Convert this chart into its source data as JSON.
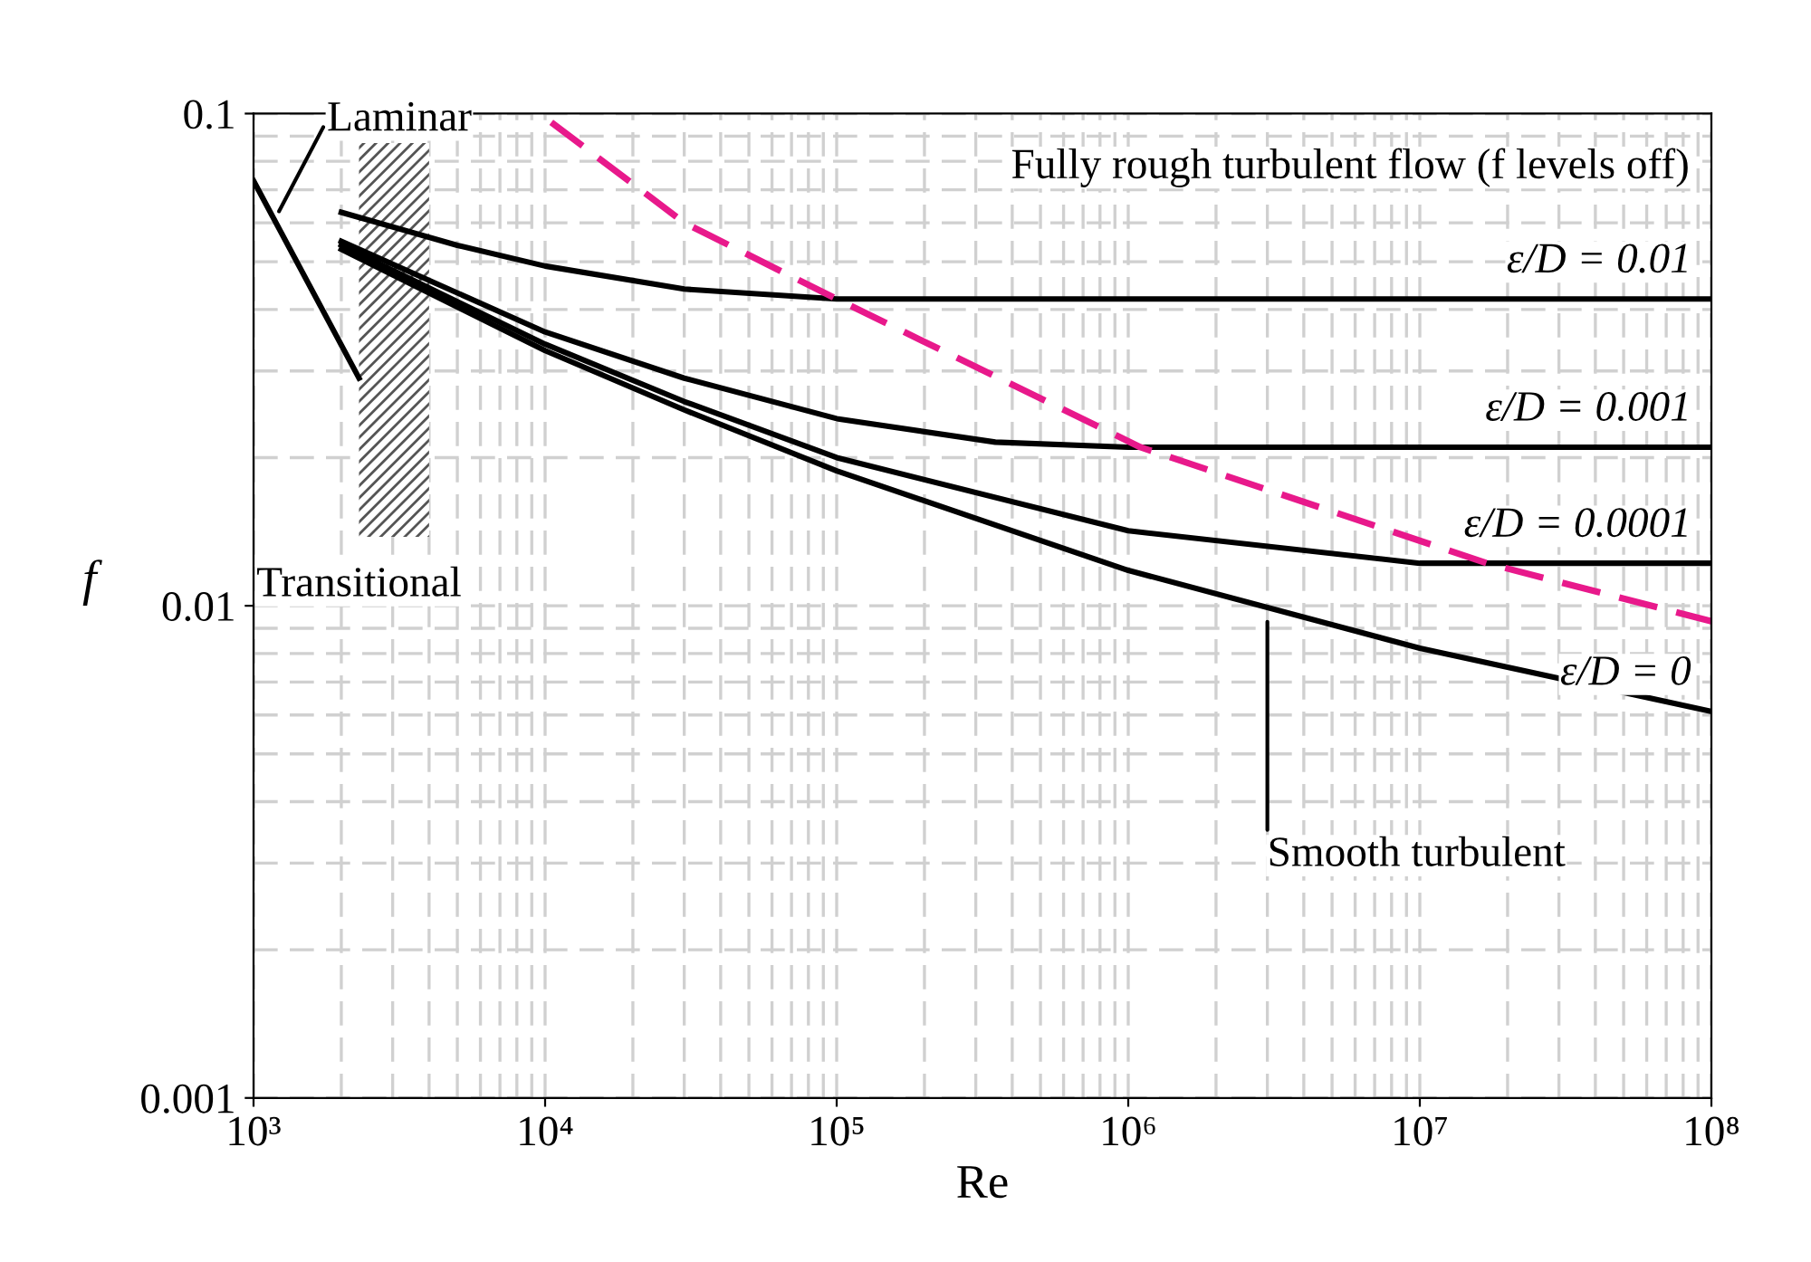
{
  "chart_data": {
    "type": "line",
    "xlabel": "Re",
    "ylabel": "f",
    "log": "xy",
    "xlim": [
      1000,
      100000000
    ],
    "ylim": [
      0.001,
      0.1
    ],
    "xticks": [
      {
        "value": 1000,
        "label": "10³"
      },
      {
        "value": 10000,
        "label": "10⁴"
      },
      {
        "value": 100000,
        "label": "10⁵"
      },
      {
        "value": 1000000,
        "label": "10⁶"
      },
      {
        "value": 10000000,
        "label": "10⁷"
      },
      {
        "value": 100000000,
        "label": "10⁸"
      }
    ],
    "yticks": [
      0.001,
      0.01,
      0.1
    ],
    "grid": true,
    "line_style": "solid",
    "marker": "none",
    "series": [
      {
        "color": "#000000",
        "x": [
          1000,
          2300
        ],
        "values": [
          0.073,
          0.029
        ]
      },
      {
        "name": "ε/D = 0.01",
        "color": "#000000",
        "x": [
          2000,
          5000,
          10000,
          30000,
          100000,
          1000000,
          100000000
        ],
        "values": [
          0.063,
          0.054,
          0.049,
          0.044,
          0.042,
          0.042,
          0.042
        ]
      },
      {
        "name": "ε/D = 0.001",
        "color": "#000000",
        "x": [
          2000,
          10000,
          30000,
          100000,
          350000,
          1000000,
          100000000
        ],
        "values": [
          0.055,
          0.036,
          0.029,
          0.024,
          0.0215,
          0.021,
          0.021
        ]
      },
      {
        "name": "ε/D = 0.0001",
        "color": "#000000",
        "x": [
          2000,
          10000,
          30000,
          100000,
          1000000,
          10000000,
          100000000
        ],
        "values": [
          0.054,
          0.034,
          0.026,
          0.02,
          0.0142,
          0.0122,
          0.0122
        ]
      },
      {
        "name": "ε/D = 0",
        "color": "#000000",
        "x": [
          2000,
          10000,
          30000,
          100000,
          1000000,
          10000000,
          100000000
        ],
        "values": [
          0.053,
          0.033,
          0.025,
          0.0188,
          0.0118,
          0.0082,
          0.0061
        ]
      },
      {
        "color": "#e8198b",
        "line_style": "dashed",
        "x": [
          10500,
          30000,
          100000,
          1100000,
          17000000,
          100000000
        ],
        "values": [
          0.096,
          0.06,
          0.042,
          0.021,
          0.0122,
          0.0093
        ]
      }
    ],
    "bands": [
      {
        "axis": "x",
        "from": 2300,
        "to": 4000,
        "label": "Transitional",
        "color": "#555555"
      }
    ],
    "annotations": [
      "Fully rough turbulent flow (f levels off)",
      {
        "text": "Laminar",
        "x": 1200,
        "y": 0.062
      },
      {
        "text": "Smooth turbulent",
        "x": 3000000,
        "y": 0.0095
      }
    ]
  }
}
